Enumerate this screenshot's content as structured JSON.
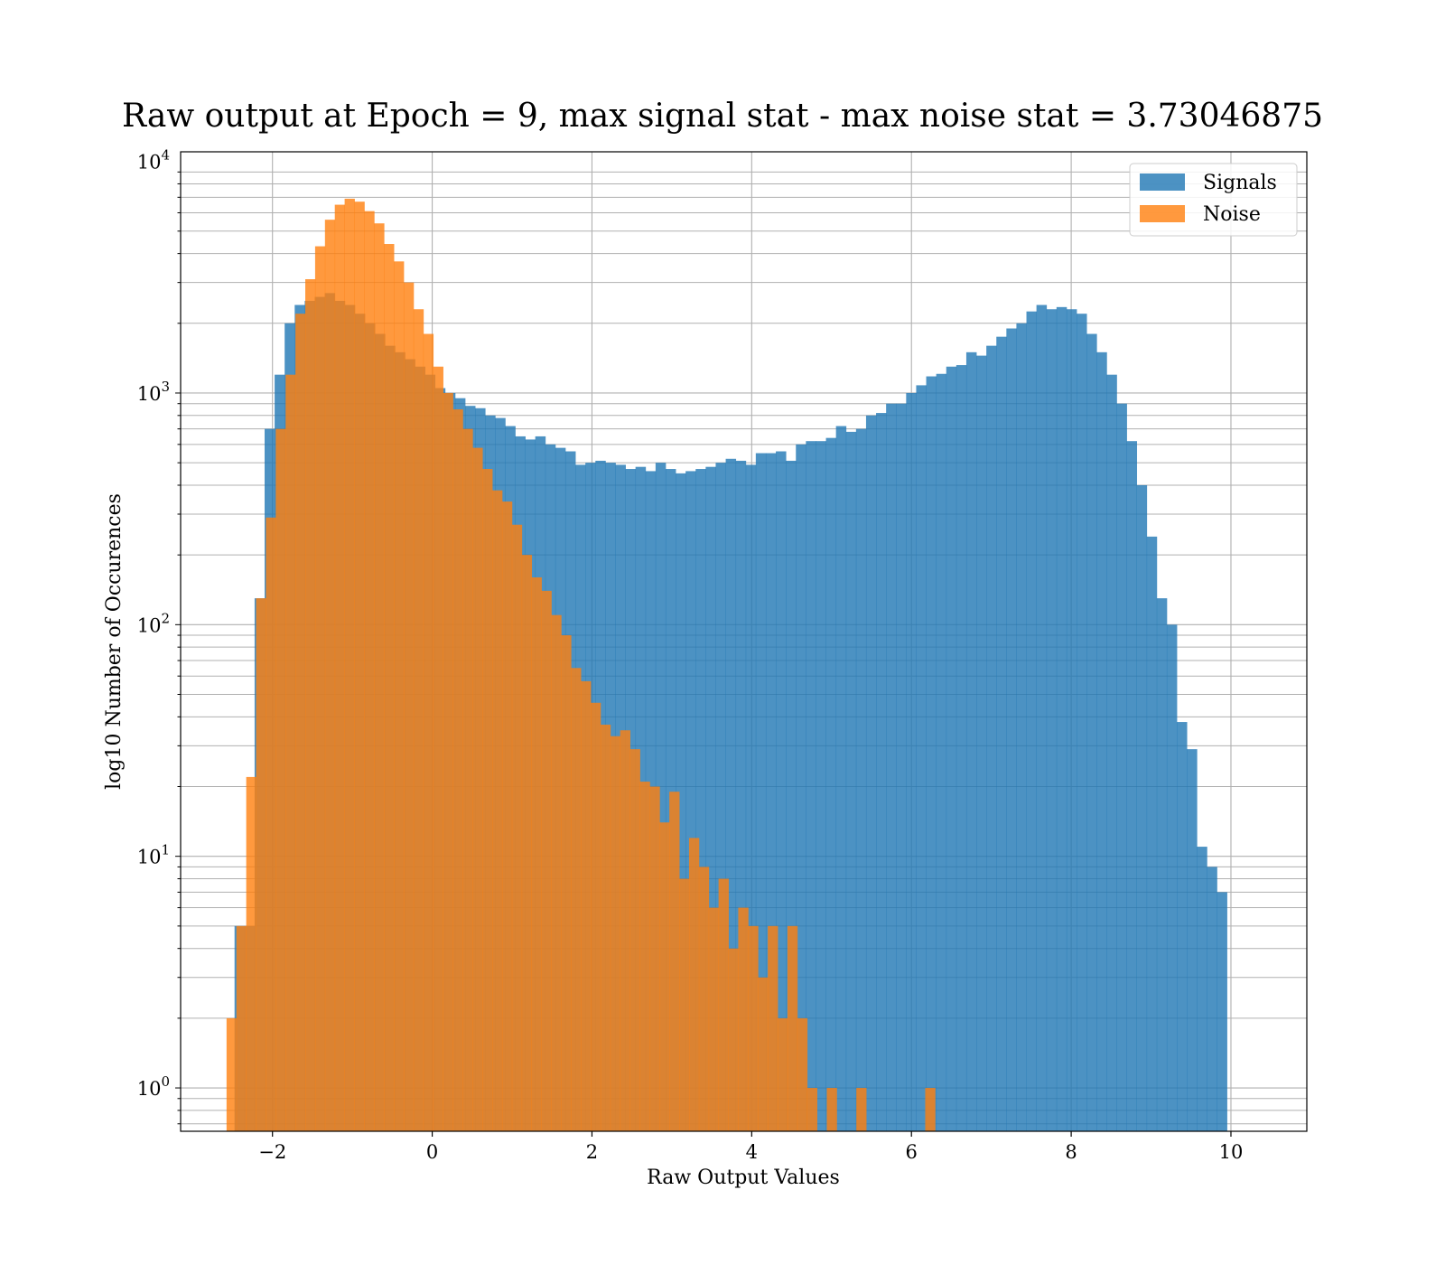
{
  "chart_data": {
    "type": "bar",
    "chart_kind": "histogram",
    "title": "Raw output at Epoch = 9, max signal stat - max noise stat = 3.73046875",
    "xlabel": "Raw Output Values",
    "ylabel": "log10 Number of Occurences",
    "yscale": "log",
    "xlim": [
      -3.15,
      10.95
    ],
    "ylim": [
      0.65,
      11000
    ],
    "x_ticks": [
      -2,
      0,
      2,
      4,
      6,
      8,
      10
    ],
    "x_tick_labels": [
      "−2",
      "0",
      "2",
      "4",
      "6",
      "8",
      "10"
    ],
    "y_ticks": [
      1,
      10,
      100,
      1000,
      10000
    ],
    "y_tick_labels": [
      {
        "base": "10",
        "exp": "0"
      },
      {
        "base": "10",
        "exp": "1"
      },
      {
        "base": "10",
        "exp": "2"
      },
      {
        "base": "10",
        "exp": "3"
      },
      {
        "base": "10",
        "exp": "4"
      }
    ],
    "grid": true,
    "legend_position": "top-right",
    "series": [
      {
        "name": "Signals",
        "color": "#1f77b4",
        "bin_start": -2.475,
        "bin_width": 0.1255,
        "values": [
          5,
          5,
          130,
          700,
          1200,
          2000,
          2400,
          2500,
          2600,
          2700,
          2500,
          2400,
          2200,
          2000,
          1800,
          1600,
          1500,
          1400,
          1300,
          1200,
          1050,
          1000,
          950,
          880,
          860,
          800,
          780,
          720,
          650,
          630,
          650,
          600,
          580,
          560,
          490,
          500,
          510,
          500,
          490,
          470,
          480,
          460,
          500,
          470,
          450,
          460,
          470,
          480,
          500,
          520,
          510,
          490,
          550,
          550,
          560,
          510,
          600,
          620,
          620,
          640,
          720,
          680,
          700,
          800,
          820,
          900,
          900,
          1000,
          1080,
          1180,
          1210,
          1300,
          1320,
          1500,
          1450,
          1600,
          1750,
          1900,
          2000,
          2250,
          2400,
          2300,
          2350,
          2300,
          2200,
          1800,
          1500,
          1200,
          900,
          620,
          400,
          240,
          130,
          100,
          38,
          29,
          11,
          9,
          7
        ]
      },
      {
        "name": "Noise",
        "color": "#ff7f0e",
        "bin_start": -2.575,
        "bin_width": 0.1232,
        "values": [
          2,
          5,
          22,
          130,
          290,
          700,
          1200,
          2200,
          3100,
          4300,
          5600,
          6500,
          6900,
          6700,
          6100,
          5400,
          4400,
          3700,
          3000,
          2300,
          1800,
          1300,
          1000,
          850,
          700,
          580,
          470,
          380,
          340,
          270,
          200,
          160,
          140,
          110,
          90,
          65,
          57,
          46,
          37,
          33,
          35,
          29,
          21,
          20,
          14,
          19,
          8,
          12,
          9,
          6,
          8,
          4,
          6,
          5,
          3,
          5,
          2,
          5,
          2,
          1,
          0,
          1,
          0,
          0,
          1,
          0,
          0,
          0,
          0,
          0,
          0,
          1
        ]
      }
    ]
  }
}
